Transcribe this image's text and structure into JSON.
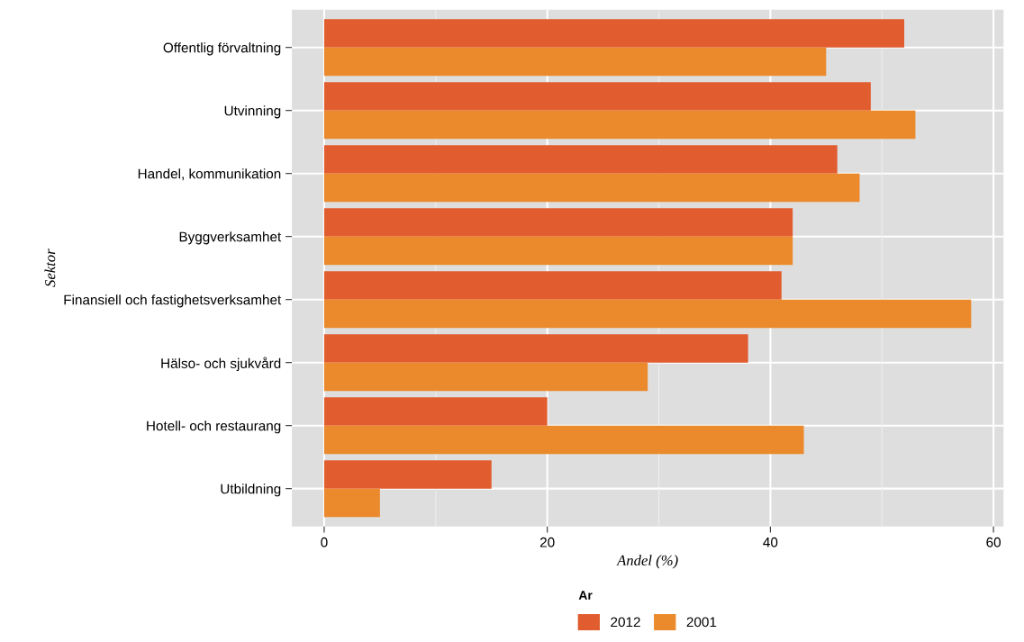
{
  "chart_data": {
    "type": "bar",
    "orientation": "horizontal",
    "xlabel": "Andel (%)",
    "ylabel": "Sektor",
    "legend_title": "Ar",
    "legend": "bottom",
    "grid": true,
    "categories": [
      "Offentlig förvaltning",
      "Utvinning",
      "Handel, kommunikation",
      "Byggverksamhet",
      "Finansiell och fastighetsverksamhet",
      "Hälso- och sjukvård",
      "Hotell- och restaurang",
      "Utbildning"
    ],
    "series": [
      {
        "name": "2012",
        "color": "#e15d2f",
        "values": [
          52,
          49,
          46,
          42,
          41,
          38,
          20,
          15
        ]
      },
      {
        "name": "2001",
        "color": "#eb8a2c",
        "values": [
          45,
          53,
          48,
          42,
          58,
          29,
          43,
          5
        ]
      }
    ],
    "xlim": [
      -2.9,
      60.9
    ],
    "xticks": [
      0,
      20,
      40,
      60
    ]
  }
}
